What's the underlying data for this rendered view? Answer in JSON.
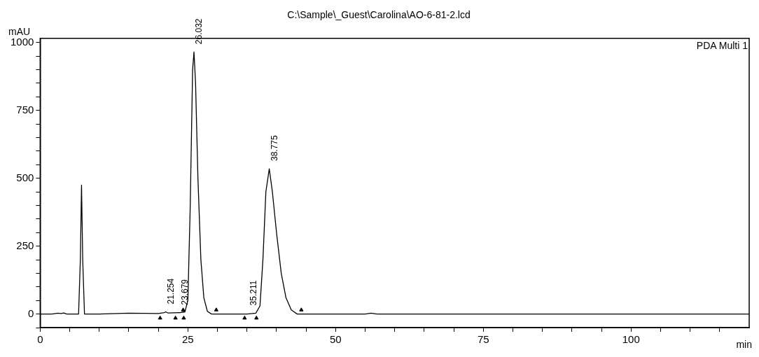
{
  "chart_data": {
    "type": "line",
    "title": "C:\\Sample\\_Guest\\Carolina\\AO-6-81-2.lcd",
    "xlabel": "min",
    "ylabel": "mAU",
    "xlim": [
      0,
      120
    ],
    "xticks": [
      0,
      {
        "value": 5,
        "label": null
      },
      {
        "value": 10,
        "label": null
      },
      {
        "value": 15,
        "label": null
      },
      {
        "value": 20,
        "label": null
      },
      25,
      {
        "value": 30,
        "label": null
      },
      {
        "value": 35,
        "label": null
      },
      {
        "value": 40,
        "label": null
      },
      {
        "value": 45,
        "label": null
      },
      50,
      {
        "value": 55,
        "label": null
      },
      {
        "value": 60,
        "label": null
      },
      {
        "value": 65,
        "label": null
      },
      {
        "value": 70,
        "label": null
      },
      75,
      {
        "value": 80,
        "label": null
      },
      {
        "value": 85,
        "label": null
      },
      {
        "value": 90,
        "label": null
      },
      {
        "value": 95,
        "label": null
      },
      100,
      {
        "value": 105,
        "label": null
      },
      {
        "value": 110,
        "label": null
      },
      {
        "value": 115,
        "label": null
      }
    ],
    "ylim": [
      -50,
      1015
    ],
    "yticks": [
      {
        "value": -50,
        "label": null
      },
      0,
      {
        "value": 50,
        "label": null
      },
      {
        "value": 100,
        "label": null
      },
      {
        "value": 150,
        "label": null
      },
      {
        "value": 200,
        "label": null
      },
      250,
      {
        "value": 300,
        "label": null
      },
      {
        "value": 350,
        "label": null
      },
      {
        "value": 400,
        "label": null
      },
      {
        "value": 450,
        "label": null
      },
      500,
      {
        "value": 550,
        "label": null
      },
      {
        "value": 600,
        "label": null
      },
      {
        "value": 650,
        "label": null
      },
      {
        "value": 700,
        "label": null
      },
      750,
      {
        "value": 800,
        "label": null
      },
      {
        "value": 850,
        "label": null
      },
      {
        "value": 900,
        "label": null
      },
      {
        "value": 950,
        "label": null
      },
      1000
    ],
    "grid": false,
    "legend": false,
    "line_style": "solid",
    "marker": "none",
    "series": [
      {
        "type": "line",
        "color": "#000000",
        "x": [
          0,
          2,
          3,
          3.5,
          4,
          4.5,
          6.5,
          6.8,
          7,
          7.2,
          7.5,
          10,
          15,
          20,
          21,
          21.254,
          21.6,
          23.7,
          24.5,
          25,
          25.4,
          25.8,
          26.032,
          26.3,
          26.7,
          27.2,
          27.7,
          28.3,
          29,
          35,
          36.5,
          37.2,
          37.7,
          38.2,
          38.775,
          39.3,
          40,
          40.8,
          41.6,
          42.5,
          43.5,
          55,
          56,
          57,
          120
        ],
        "values": [
          0,
          0,
          3,
          2,
          4,
          0,
          0,
          200,
          475,
          200,
          0,
          0,
          3,
          2,
          5,
          8,
          4,
          5,
          8,
          50,
          400,
          900,
          965,
          850,
          500,
          200,
          60,
          10,
          0,
          0,
          3,
          30,
          200,
          450,
          535,
          450,
          300,
          150,
          60,
          15,
          0,
          0,
          3,
          0,
          0
        ]
      },
      {
        "type": "scatter",
        "color": "#000000",
        "marker": "triangle",
        "x": [
          20.3,
          22.9,
          24.3,
          34.6,
          36.6
        ],
        "values": [
          -15,
          -15,
          -15,
          -15,
          -15
        ]
      },
      {
        "type": "scatter",
        "color": "#000000",
        "marker": "triangle",
        "x": [
          24.2,
          29.8,
          44.2
        ],
        "values": [
          15,
          15,
          15
        ]
      }
    ],
    "annotations": [
      {
        "text": "21.254",
        "x": 21.254,
        "y": 8
      },
      {
        "text": "23.679",
        "x": 23.679,
        "y": 5
      },
      {
        "text": "26.032",
        "x": 26.032,
        "y": 965
      },
      {
        "text": "35.211",
        "x": 35.211,
        "y": 3
      },
      {
        "text": "38.775",
        "x": 38.775,
        "y": 535
      },
      "PDA Multi 1"
    ]
  }
}
